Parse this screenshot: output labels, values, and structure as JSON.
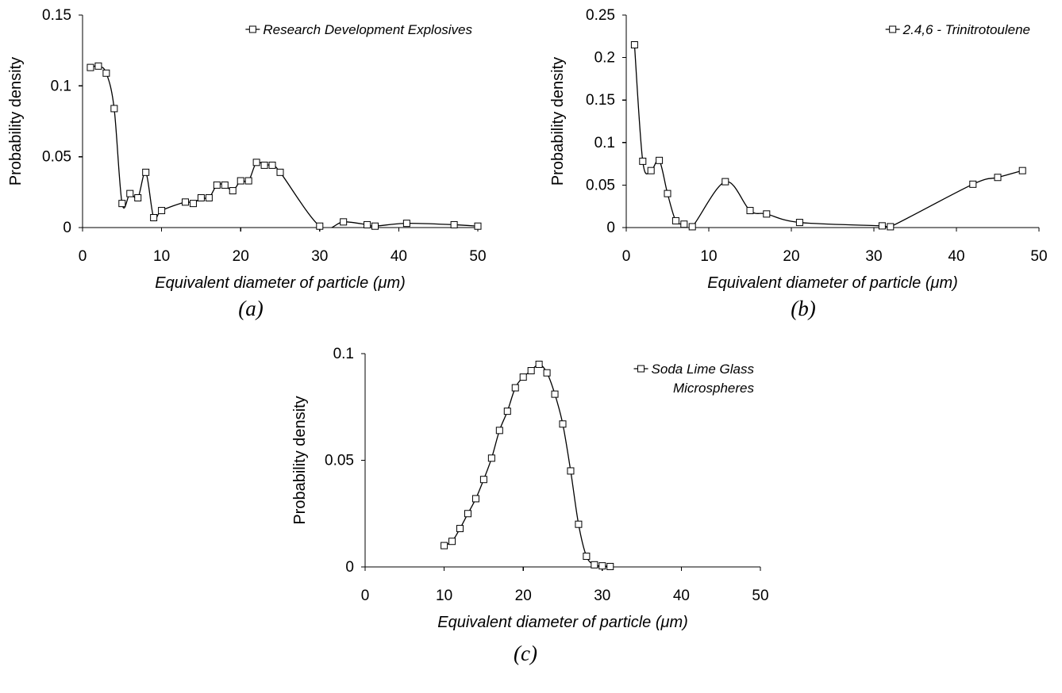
{
  "chart_data": [
    {
      "type": "line",
      "caption": "(a)",
      "xlabel": "Equivalent diameter of particle (μm)",
      "ylabel": "Probability density",
      "xlim": [
        0,
        50
      ],
      "ylim": [
        0,
        0.15
      ],
      "xticks": [
        "0",
        "10",
        "20",
        "30",
        "40",
        "50"
      ],
      "yticks": [
        "0",
        "0.05",
        "0.1",
        "0.15"
      ],
      "legend_position": "top-right",
      "series": [
        {
          "name": "Research Development Explosives",
          "marker": "open-square",
          "x": [
            1,
            2,
            3,
            4,
            5,
            6,
            7,
            8,
            9,
            10,
            13,
            14,
            15,
            16,
            17,
            18,
            19,
            20,
            21,
            22,
            23,
            24,
            25,
            30,
            33,
            36,
            37,
            41,
            47,
            50
          ],
          "y": [
            0.113,
            0.114,
            0.109,
            0.084,
            0.017,
            0.024,
            0.021,
            0.039,
            0.007,
            0.012,
            0.018,
            0.017,
            0.021,
            0.021,
            0.03,
            0.03,
            0.026,
            0.033,
            0.033,
            0.046,
            0.044,
            0.044,
            0.039,
            0.001,
            0.004,
            0.002,
            0.001,
            0.003,
            0.002,
            0.001
          ]
        }
      ]
    },
    {
      "type": "line",
      "caption": "(b)",
      "xlabel": "Equivalent diameter of particle (μm)",
      "ylabel": "Probability density",
      "xlim": [
        0,
        50
      ],
      "ylim": [
        0,
        0.25
      ],
      "xticks": [
        "0",
        "10",
        "20",
        "30",
        "40",
        "50"
      ],
      "yticks": [
        "0",
        "0.05",
        "0.1",
        "0.15",
        "0.2",
        "0.25"
      ],
      "legend_position": "top-right",
      "series": [
        {
          "name": "2.4,6 - Trinitrotoulene",
          "marker": "open-square",
          "x": [
            1,
            2,
            3,
            4,
            5,
            6,
            7,
            8,
            12,
            15,
            17,
            21,
            31,
            32,
            42,
            45,
            48
          ],
          "y": [
            0.215,
            0.078,
            0.067,
            0.079,
            0.04,
            0.008,
            0.004,
            0.001,
            0.054,
            0.02,
            0.016,
            0.006,
            0.002,
            0.001,
            0.051,
            0.059,
            0.067
          ]
        }
      ]
    },
    {
      "type": "line",
      "caption": "(c)",
      "xlabel": "Equivalent diameter of particle (μm)",
      "ylabel": "Probability density",
      "xlim": [
        0,
        50
      ],
      "ylim": [
        0,
        0.1
      ],
      "xticks": [
        "0",
        "10",
        "20",
        "30",
        "40",
        "50"
      ],
      "yticks": [
        "0",
        "0.05",
        "0.1"
      ],
      "legend_position": "top-right",
      "series": [
        {
          "name": "Soda Lime Glass Microspheres",
          "legend_lines": [
            "Soda Lime Glass",
            "Microspheres"
          ],
          "marker": "open-square",
          "x": [
            10,
            11,
            12,
            13,
            14,
            15,
            16,
            17,
            18,
            19,
            20,
            21,
            22,
            23,
            24,
            25,
            26,
            27,
            28,
            29,
            30,
            31
          ],
          "y": [
            0.01,
            0.012,
            0.018,
            0.025,
            0.032,
            0.041,
            0.051,
            0.064,
            0.073,
            0.084,
            0.089,
            0.092,
            0.095,
            0.091,
            0.081,
            0.067,
            0.045,
            0.02,
            0.005,
            0.001,
            0.0005,
            0.0002
          ]
        }
      ]
    }
  ]
}
